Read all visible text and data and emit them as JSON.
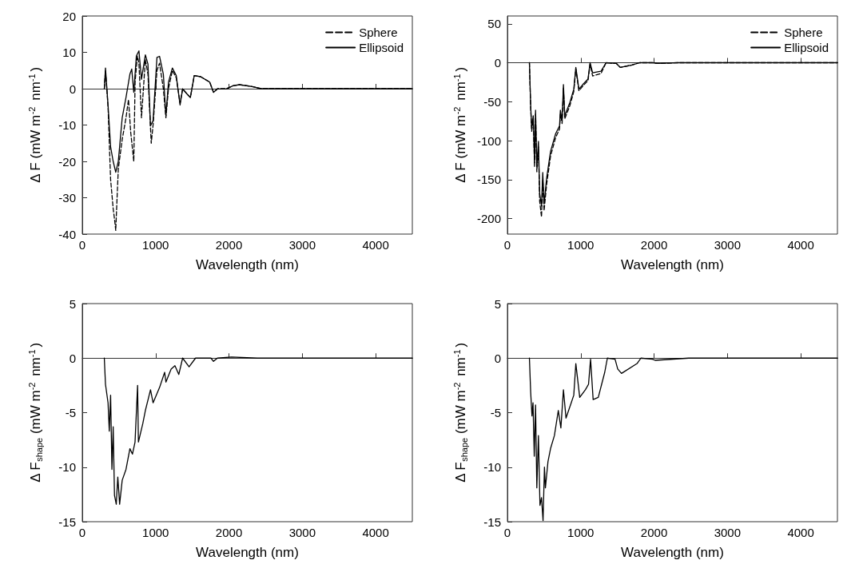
{
  "chart_data": [
    {
      "type": "line",
      "xlabel": "Wavelength (nm)",
      "ylabel": "Δ F (mW m$^{-2}$ nm$^{-1}$)",
      "xlim": [
        0,
        4500
      ],
      "xticks": [
        0,
        1000,
        2000,
        3000,
        4000
      ],
      "ylim": [
        -40,
        20
      ],
      "yticks": [
        -40,
        -30,
        -20,
        -10,
        0,
        10,
        20
      ],
      "legend": "top right",
      "marker": "none",
      "series": [
        {
          "name": "Sphere",
          "color": "#000000",
          "line_style": "dashed",
          "x": [
            300,
            316,
            351,
            386,
            421,
            440,
            456,
            470,
            491,
            544,
            596,
            630,
            660,
            702,
            720,
            752,
            772,
            807,
            860,
            895,
            940,
            965,
            1018,
            1053,
            1105,
            1140,
            1175,
            1228,
            1281,
            1333,
            1368,
            1439,
            1474,
            1526,
            1614,
            1737,
            1789,
            1842,
            1965,
            2053,
            2140,
            2316,
            2439,
            4500
          ],
          "values": [
            0,
            5,
            -5,
            -25,
            -33,
            -36,
            -39,
            -32,
            -22,
            -14,
            -8,
            -3,
            -12,
            -20,
            2,
            9,
            7,
            -8,
            8,
            4,
            -15,
            -10,
            5,
            7,
            0,
            -8,
            0,
            5,
            3,
            -4,
            0,
            -1.7,
            -2.4,
            3.6,
            3.3,
            1.8,
            -1,
            0,
            0,
            0.8,
            1.1,
            0.6,
            0,
            0
          ]
        },
        {
          "name": "Ellipsoid",
          "color": "#000000",
          "line_style": "solid",
          "x": [
            300,
            316,
            351,
            386,
            421,
            456,
            491,
            544,
            596,
            649,
            674,
            702,
            737,
            772,
            807,
            860,
            895,
            930,
            965,
            1018,
            1053,
            1105,
            1140,
            1175,
            1228,
            1281,
            1333,
            1368,
            1439,
            1474,
            1526,
            1614,
            1737,
            1789,
            1842,
            1965,
            2053,
            2140,
            2316,
            2439,
            4500
          ],
          "values": [
            0,
            5.7,
            -4.5,
            -16,
            -20,
            -23,
            -20,
            -8,
            -2.4,
            4,
            5.4,
            -1,
            9,
            10.4,
            2.6,
            9.3,
            6.8,
            -10.2,
            -8.8,
            8.6,
            8.9,
            4,
            -7.4,
            1.8,
            5.7,
            3.6,
            -4.5,
            -0.1,
            -1.7,
            -2.4,
            3.6,
            3.3,
            1.8,
            -1,
            -0.1,
            -0.1,
            0.8,
            1.1,
            0.6,
            0,
            0
          ]
        }
      ]
    },
    {
      "type": "line",
      "xlabel": "Wavelength (nm)",
      "ylabel": "Δ F (mW m$^{-2}$ nm$^{-1}$)",
      "xlim": [
        0,
        4500
      ],
      "xticks": [
        0,
        1000,
        2000,
        3000,
        4000
      ],
      "ylim": [
        -220,
        60
      ],
      "yticks": [
        -200,
        -150,
        -100,
        -50,
        0,
        50
      ],
      "legend": "top right",
      "marker": "none",
      "series": [
        {
          "name": "Sphere",
          "color": "#000000",
          "line_style": "dashed",
          "x": [
            300,
            317,
            331,
            352,
            370,
            384,
            401,
            423,
            440,
            465,
            482,
            500,
            535,
            588,
            658,
            711,
            722,
            746,
            764,
            782,
            852,
            905,
            933,
            975,
            1028,
            1099,
            1127,
            1162,
            1275,
            1345,
            1486,
            1539,
            1697,
            1803,
            1979,
            2049,
            2331,
            4500
          ],
          "values": [
            0,
            -58,
            -88,
            -72,
            -134,
            -66,
            -140,
            -108,
            -178,
            -198,
            -150,
            -190,
            -156,
            -120,
            -96,
            -85,
            -66,
            -78,
            -32,
            -72,
            -55,
            -37,
            -8,
            -36,
            -30,
            -23,
            -2,
            -17,
            -14,
            0,
            -1,
            -6,
            -3,
            0,
            0,
            -1,
            0,
            0
          ]
        },
        {
          "name": "Ellipsoid",
          "color": "#000000",
          "line_style": "solid",
          "x": [
            300,
            317,
            331,
            352,
            370,
            384,
            401,
            423,
            440,
            465,
            482,
            500,
            535,
            588,
            658,
            711,
            722,
            746,
            764,
            782,
            852,
            905,
            933,
            975,
            1028,
            1099,
            1127,
            1162,
            1275,
            1345,
            1486,
            1539,
            1697,
            1803,
            1979,
            2049,
            2331,
            4500
          ],
          "values": [
            0,
            -54,
            -84,
            -68,
            -128,
            -61,
            -134,
            -101,
            -168,
            -184,
            -141,
            -181,
            -148,
            -114,
            -91,
            -81,
            -61,
            -74,
            -28,
            -68,
            -51,
            -34,
            -6,
            -34,
            -28,
            -21,
            0,
            -13,
            -11,
            0,
            -1,
            -6,
            -3,
            0,
            0,
            -1,
            0,
            0
          ]
        }
      ]
    },
    {
      "type": "line",
      "xlabel": "Wavelength (nm)",
      "ylabel": "Δ F$_{shape}$ (mW m$^{-2}$ nm$^{-1}$)",
      "xlim": [
        0,
        4500
      ],
      "xticks": [
        0,
        1000,
        2000,
        3000,
        4000
      ],
      "ylim": [
        -15,
        5
      ],
      "yticks": [
        -15,
        -10,
        -5,
        0,
        5
      ],
      "marker": "none",
      "series": [
        {
          "color": "#000000",
          "line_style": "solid",
          "x": [
            300,
            316,
            351,
            368,
            386,
            404,
            421,
            439,
            463,
            484,
            509,
            544,
            596,
            649,
            684,
            719,
            754,
            765,
            825,
            860,
            930,
            965,
            1053,
            1123,
            1140,
            1211,
            1263,
            1316,
            1368,
            1456,
            1544,
            1754,
            1789,
            1842,
            2035,
            2386,
            4500
          ],
          "values": [
            0,
            -2.4,
            -4.1,
            -6.7,
            -3.4,
            -10.2,
            -6.3,
            -12.6,
            -13.4,
            -10.9,
            -13.4,
            -11.2,
            -10.2,
            -8.3,
            -8.8,
            -7.7,
            -2.5,
            -7.7,
            -6,
            -4.8,
            -2.9,
            -4.1,
            -2.7,
            -1.3,
            -2.2,
            -1,
            -0.7,
            -1.5,
            0,
            -0.8,
            0,
            0,
            -0.3,
            0,
            0.1,
            0,
            0
          ]
        }
      ]
    },
    {
      "type": "line",
      "xlabel": "Wavelength (nm)",
      "ylabel": "Δ F$_{shape}$ (mW m$^{-2}$ nm$^{-1}$)",
      "xlim": [
        0,
        4500
      ],
      "xticks": [
        0,
        1000,
        2000,
        3000,
        4000
      ],
      "ylim": [
        -15,
        5
      ],
      "yticks": [
        -15,
        -10,
        -5,
        0,
        5
      ],
      "marker": "none",
      "series": [
        {
          "color": "#000000",
          "line_style": "solid",
          "x": [
            300,
            317,
            335,
            349,
            366,
            384,
            401,
            423,
            444,
            465,
            486,
            505,
            518,
            553,
            588,
            641,
            694,
            729,
            764,
            799,
            870,
            905,
            933,
            986,
            1063,
            1106,
            1134,
            1169,
            1239,
            1327,
            1363,
            1468,
            1504,
            1556,
            1768,
            1820,
            1979,
            2014,
            2472,
            4500
          ],
          "values": [
            0,
            -3.1,
            -5.3,
            -4.1,
            -9,
            -4.3,
            -11.9,
            -7.1,
            -13.5,
            -12.8,
            -14.9,
            -10,
            -11.9,
            -9.5,
            -8.3,
            -7.1,
            -4.8,
            -6.4,
            -2.9,
            -5.5,
            -4.1,
            -3.4,
            -0.5,
            -3.6,
            -2.9,
            -2.4,
            -0.1,
            -3.8,
            -3.6,
            -1.3,
            0,
            -0.1,
            -1,
            -1.4,
            -0.5,
            0,
            -0.1,
            -0.2,
            0,
            0
          ]
        }
      ]
    }
  ]
}
